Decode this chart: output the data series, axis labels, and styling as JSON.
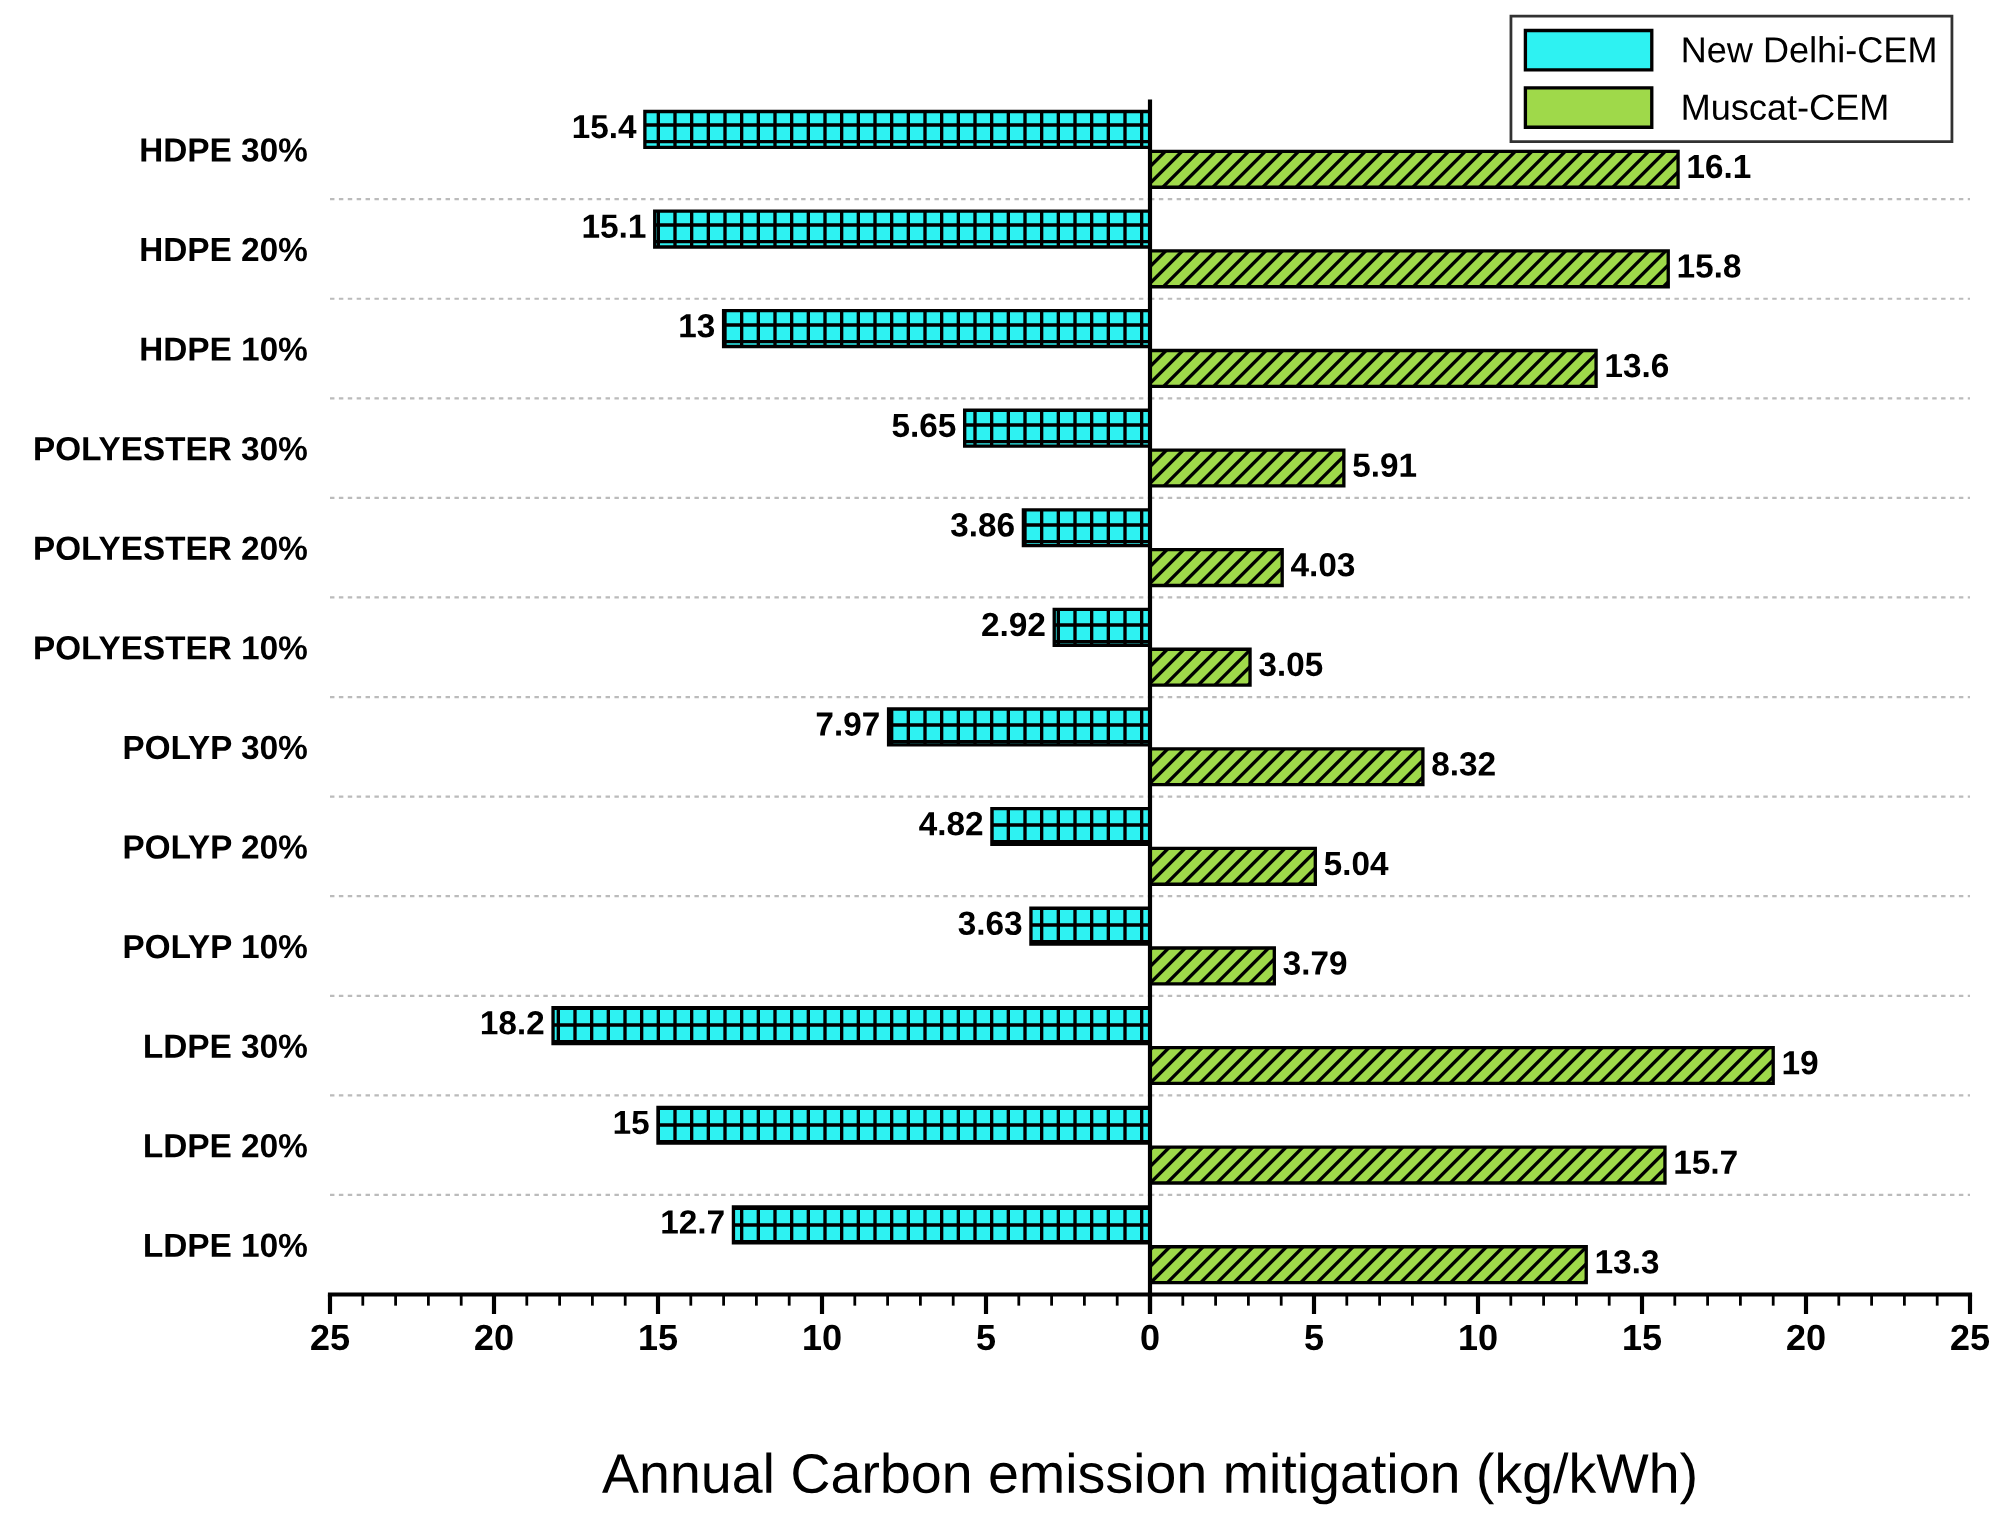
{
  "chart_data": [
    {
      "type": "bar",
      "orientation": "horizontal",
      "categories": [
        "HDPE 30%",
        "HDPE 20%",
        "HDPE 10%",
        "POLYESTER 30%",
        "POLYESTER 20%",
        "POLYESTER 10%",
        "POLYP 30%",
        "POLYP 20%",
        "POLYP 10%",
        "LDPE 30%",
        "LDPE 20%",
        "LDPE 10%"
      ],
      "series": [
        {
          "name": "New Delhi-CEM",
          "color": "#2ef2f2",
          "values": [
            15.4,
            15.1,
            13,
            5.65,
            3.86,
            2.92,
            7.97,
            4.82,
            3.63,
            18.2,
            15,
            12.7
          ]
        }
      ],
      "xlim": [
        25,
        0
      ],
      "xticks": [
        25,
        20,
        15,
        10,
        5,
        {
          "value": 0,
          "label": null
        }
      ],
      "data_labels": true,
      "grid": "y"
    },
    {
      "type": "bar",
      "orientation": "horizontal",
      "xlabel": "Annual Carbon emission mitigation (kg/kWh)",
      "categories": [
        null,
        null,
        null,
        null,
        null,
        null,
        null,
        null,
        null,
        null,
        null,
        null
      ],
      "series": [
        {
          "name": "Muscat-CEM",
          "color": "#9fd94a",
          "values": [
            16.1,
            15.8,
            13.6,
            5.91,
            4.03,
            3.05,
            8.32,
            5.04,
            3.79,
            19,
            15.7,
            13.3
          ]
        }
      ],
      "xlim": [
        0,
        25
      ],
      "xticks": [
        0,
        5,
        10,
        15,
        20,
        25
      ],
      "tick_labels": "x",
      "data_labels": true,
      "grid": "y",
      "legend": "top right"
    }
  ]
}
